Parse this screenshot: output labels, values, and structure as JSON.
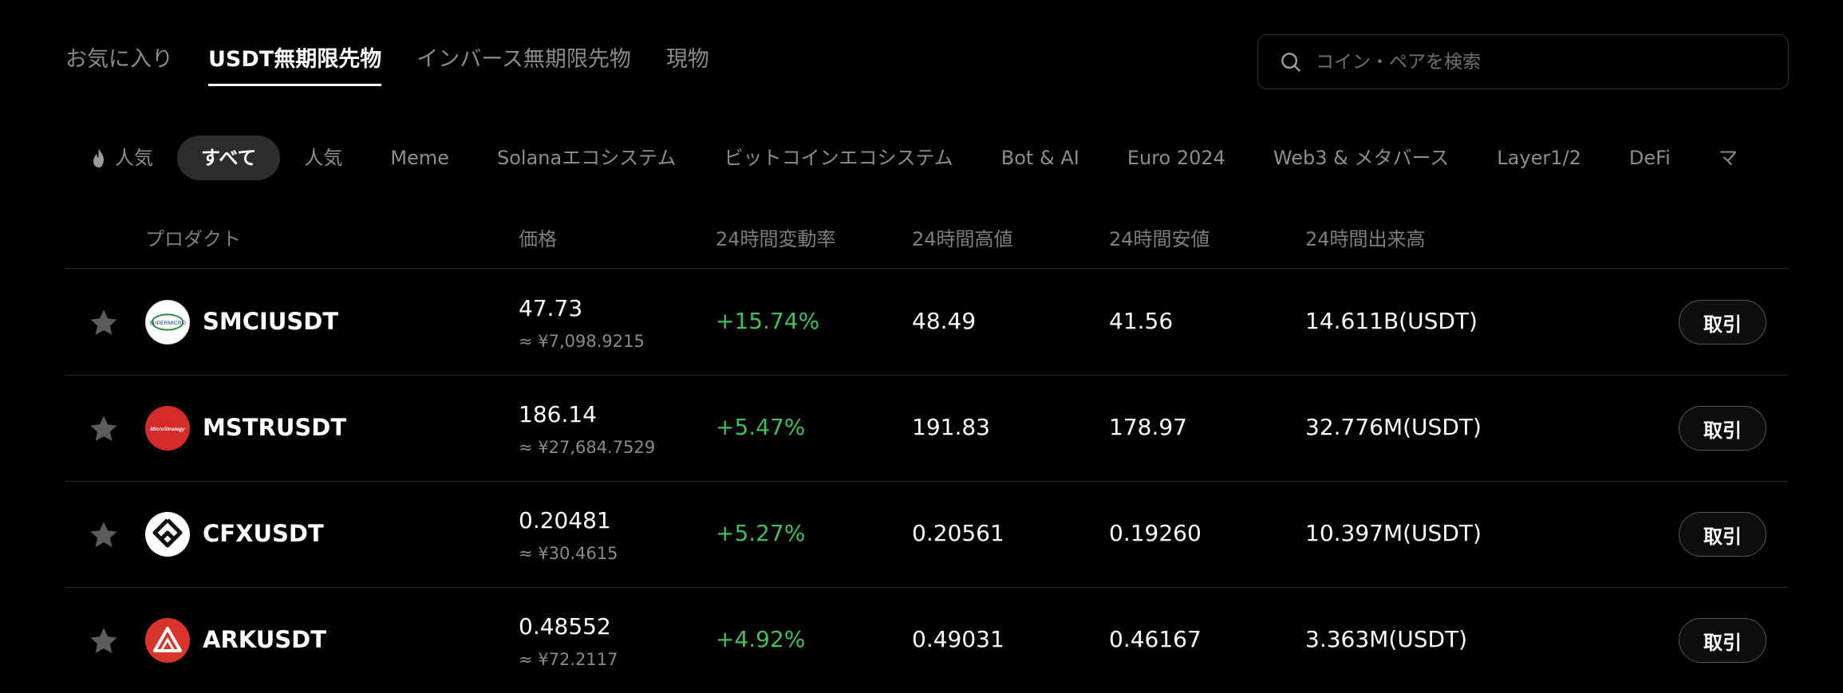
{
  "top_tabs": [
    {
      "label": "お気に入り",
      "active": false
    },
    {
      "label": "USDT無期限先物",
      "active": true
    },
    {
      "label": "インバース無期限先物",
      "active": false
    },
    {
      "label": "現物",
      "active": false
    }
  ],
  "search": {
    "placeholder": "コイン・ペアを検索",
    "icon": "search-icon"
  },
  "categories": [
    {
      "label": "人気",
      "icon": "fire-icon",
      "active": false
    },
    {
      "label": "すべて",
      "active": true
    },
    {
      "label": "人気",
      "active": false
    },
    {
      "label": "Meme",
      "active": false
    },
    {
      "label": "Solanaエコシステム",
      "active": false
    },
    {
      "label": "ビットコインエコシステム",
      "active": false
    },
    {
      "label": "Bot & AI",
      "active": false
    },
    {
      "label": "Euro 2024",
      "active": false
    },
    {
      "label": "Web3 & メタバース",
      "active": false
    },
    {
      "label": "Layer1/2",
      "active": false
    },
    {
      "label": "DeFi",
      "active": false
    },
    {
      "label": "マ",
      "active": false
    }
  ],
  "table": {
    "headers": {
      "product": "プロダクト",
      "price": "価格",
      "change": "24時間変動率",
      "high": "24時間高値",
      "low": "24時間安値",
      "volume": "24時間出来高"
    },
    "trade_label": "取引",
    "rows": [
      {
        "symbol": "SMCIUSDT",
        "logo_text": "SUPERMICRO",
        "logo_bg": "#ffffff",
        "logo_color": "#1a3a8c",
        "price": "47.73",
        "price_jpy": "≈ ¥7,098.9215",
        "change": "+15.74%",
        "high": "48.49",
        "low": "41.56",
        "volume": "14.611B(USDT)"
      },
      {
        "symbol": "MSTRUSDT",
        "logo_text": "MicroStrategy",
        "logo_bg": "#d52b2b",
        "logo_color": "#ffffff",
        "price": "186.14",
        "price_jpy": "≈ ¥27,684.7529",
        "change": "+5.47%",
        "high": "191.83",
        "low": "178.97",
        "volume": "32.776M(USDT)"
      },
      {
        "symbol": "CFXUSDT",
        "logo_text": "",
        "logo_bg": "#ffffff",
        "logo_color": "#111111",
        "price": "0.20481",
        "price_jpy": "≈ ¥30.4615",
        "change": "+5.27%",
        "high": "0.20561",
        "low": "0.19260",
        "volume": "10.397M(USDT)"
      },
      {
        "symbol": "ARKUSDT",
        "logo_text": "",
        "logo_bg": "#d9342b",
        "logo_color": "#ffffff",
        "price": "0.48552",
        "price_jpy": "≈ ¥72.2117",
        "change": "+4.92%",
        "high": "0.49031",
        "low": "0.46167",
        "volume": "3.363M(USDT)"
      }
    ]
  },
  "colors": {
    "positive": "#3fbf62",
    "background": "#000000",
    "muted": "#8a8a8a"
  }
}
